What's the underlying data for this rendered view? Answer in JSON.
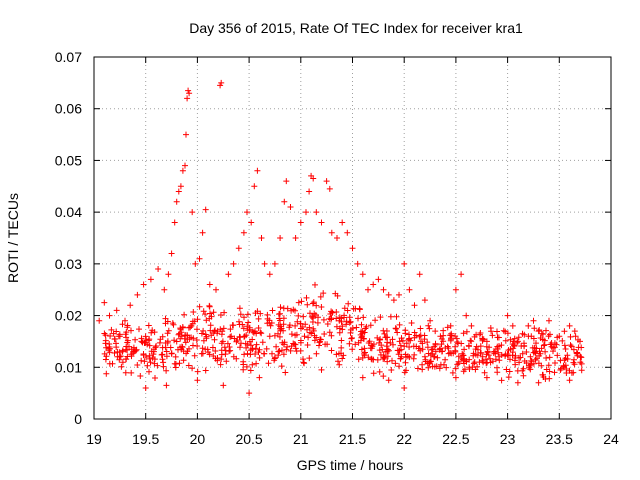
{
  "chart_data": {
    "type": "scatter",
    "title": "Day 356 of 2015, Rate Of TEC Index for receiver kra1",
    "xlabel": "GPS time / hours",
    "ylabel": "ROTI / TECUs",
    "xlim": [
      19,
      24
    ],
    "ylim": [
      0,
      0.07
    ],
    "grid": true,
    "marker": "+",
    "series_color": "#ff0000",
    "xtick_labels": [
      "19",
      "19.5",
      "20",
      "20.5",
      "21",
      "21.5",
      "22",
      "22.5",
      "23",
      "23.5",
      "24"
    ],
    "ytick_labels": [
      "0",
      "0.01",
      "0.02",
      "0.03",
      "0.04",
      "0.05",
      "0.06",
      "0.07"
    ],
    "envelope": [
      {
        "x": 19.1,
        "base": 0.0125,
        "spread": 0.0035
      },
      {
        "x": 19.3,
        "base": 0.014,
        "spread": 0.004
      },
      {
        "x": 19.5,
        "base": 0.0135,
        "spread": 0.0045
      },
      {
        "x": 19.7,
        "base": 0.014,
        "spread": 0.0045
      },
      {
        "x": 19.9,
        "base": 0.015,
        "spread": 0.005
      },
      {
        "x": 20.1,
        "base": 0.016,
        "spread": 0.005
      },
      {
        "x": 20.3,
        "base": 0.015,
        "spread": 0.005
      },
      {
        "x": 20.5,
        "base": 0.015,
        "spread": 0.005
      },
      {
        "x": 20.7,
        "base": 0.0155,
        "spread": 0.005
      },
      {
        "x": 20.9,
        "base": 0.017,
        "spread": 0.0055
      },
      {
        "x": 21.1,
        "base": 0.019,
        "spread": 0.006
      },
      {
        "x": 21.3,
        "base": 0.018,
        "spread": 0.006
      },
      {
        "x": 21.5,
        "base": 0.0165,
        "spread": 0.0055
      },
      {
        "x": 21.7,
        "base": 0.015,
        "spread": 0.005
      },
      {
        "x": 21.9,
        "base": 0.014,
        "spread": 0.0045
      },
      {
        "x": 22.1,
        "base": 0.014,
        "spread": 0.0045
      },
      {
        "x": 22.3,
        "base": 0.0135,
        "spread": 0.004
      },
      {
        "x": 22.5,
        "base": 0.013,
        "spread": 0.004
      },
      {
        "x": 22.7,
        "base": 0.0125,
        "spread": 0.0035
      },
      {
        "x": 22.9,
        "base": 0.013,
        "spread": 0.004
      },
      {
        "x": 23.1,
        "base": 0.0125,
        "spread": 0.004
      },
      {
        "x": 23.3,
        "base": 0.013,
        "spread": 0.004
      },
      {
        "x": 23.5,
        "base": 0.0125,
        "spread": 0.004
      },
      {
        "x": 23.72,
        "base": 0.013,
        "spread": 0.0035
      }
    ],
    "points": [
      [
        19.05,
        0.019
      ],
      [
        19.1,
        0.0225
      ],
      [
        19.15,
        0.02
      ],
      [
        19.22,
        0.021
      ],
      [
        19.3,
        0.019
      ],
      [
        19.35,
        0.022
      ],
      [
        19.42,
        0.024
      ],
      [
        19.48,
        0.026
      ],
      [
        19.55,
        0.027
      ],
      [
        19.62,
        0.029
      ],
      [
        19.68,
        0.025
      ],
      [
        19.72,
        0.028
      ],
      [
        19.75,
        0.032
      ],
      [
        19.78,
        0.038
      ],
      [
        19.8,
        0.042
      ],
      [
        19.82,
        0.044
      ],
      [
        19.84,
        0.045
      ],
      [
        19.86,
        0.048
      ],
      [
        19.88,
        0.049
      ],
      [
        19.89,
        0.055
      ],
      [
        19.9,
        0.062
      ],
      [
        19.91,
        0.0635
      ],
      [
        19.92,
        0.063
      ],
      [
        19.85,
        0.014
      ],
      [
        19.95,
        0.04
      ],
      [
        19.98,
        0.03
      ],
      [
        20.02,
        0.031
      ],
      [
        20.05,
        0.036
      ],
      [
        20.08,
        0.0405
      ],
      [
        20.12,
        0.026
      ],
      [
        20.18,
        0.025
      ],
      [
        20.22,
        0.0645
      ],
      [
        20.23,
        0.065
      ],
      [
        20.3,
        0.028
      ],
      [
        20.35,
        0.03
      ],
      [
        20.4,
        0.033
      ],
      [
        20.45,
        0.036
      ],
      [
        20.48,
        0.04
      ],
      [
        20.52,
        0.038
      ],
      [
        20.55,
        0.045
      ],
      [
        20.58,
        0.048
      ],
      [
        20.62,
        0.035
      ],
      [
        20.65,
        0.03
      ],
      [
        20.7,
        0.028
      ],
      [
        20.75,
        0.03
      ],
      [
        20.8,
        0.035
      ],
      [
        20.84,
        0.042
      ],
      [
        20.86,
        0.046
      ],
      [
        20.9,
        0.041
      ],
      [
        20.95,
        0.035
      ],
      [
        21.0,
        0.038
      ],
      [
        21.05,
        0.04
      ],
      [
        21.08,
        0.044
      ],
      [
        21.1,
        0.047
      ],
      [
        21.12,
        0.0465
      ],
      [
        21.15,
        0.04
      ],
      [
        21.2,
        0.038
      ],
      [
        21.25,
        0.046
      ],
      [
        21.28,
        0.0445
      ],
      [
        21.3,
        0.036
      ],
      [
        21.35,
        0.035
      ],
      [
        21.4,
        0.038
      ],
      [
        21.45,
        0.036
      ],
      [
        21.5,
        0.033
      ],
      [
        21.55,
        0.03
      ],
      [
        21.6,
        0.028
      ],
      [
        21.65,
        0.025
      ],
      [
        21.7,
        0.026
      ],
      [
        21.75,
        0.027
      ],
      [
        21.8,
        0.025
      ],
      [
        21.85,
        0.024
      ],
      [
        21.9,
        0.023
      ],
      [
        21.95,
        0.024
      ],
      [
        22.0,
        0.03
      ],
      [
        22.05,
        0.025
      ],
      [
        22.1,
        0.022
      ],
      [
        22.15,
        0.028
      ],
      [
        22.2,
        0.023
      ],
      [
        22.25,
        0.019
      ],
      [
        22.3,
        0.017
      ],
      [
        22.35,
        0.016
      ],
      [
        22.45,
        0.018
      ],
      [
        22.5,
        0.025
      ],
      [
        22.55,
        0.028
      ],
      [
        22.6,
        0.02
      ],
      [
        22.65,
        0.018
      ],
      [
        22.7,
        0.014
      ],
      [
        22.8,
        0.015
      ],
      [
        22.9,
        0.014
      ],
      [
        23.0,
        0.02
      ],
      [
        23.05,
        0.018
      ],
      [
        23.1,
        0.015
      ],
      [
        23.2,
        0.018
      ],
      [
        23.25,
        0.019
      ],
      [
        23.3,
        0.017
      ],
      [
        23.4,
        0.019
      ],
      [
        23.5,
        0.016
      ],
      [
        23.6,
        0.018
      ],
      [
        23.65,
        0.017
      ],
      [
        23.7,
        0.015
      ],
      [
        19.5,
        0.006
      ],
      [
        19.7,
        0.0065
      ],
      [
        20.0,
        0.0075
      ],
      [
        20.25,
        0.0065
      ],
      [
        20.5,
        0.005
      ],
      [
        20.6,
        0.008
      ],
      [
        20.85,
        0.009
      ],
      [
        21.2,
        0.0095
      ],
      [
        21.6,
        0.008
      ],
      [
        21.85,
        0.0075
      ],
      [
        22.0,
        0.006
      ],
      [
        22.5,
        0.008
      ],
      [
        22.8,
        0.008
      ],
      [
        23.1,
        0.007
      ],
      [
        23.3,
        0.007
      ],
      [
        23.6,
        0.0075
      ]
    ]
  }
}
